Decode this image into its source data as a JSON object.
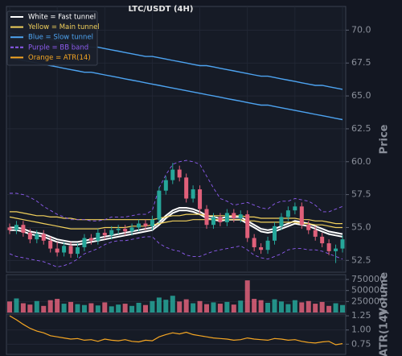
{
  "chart_data": [
    {
      "type": "candlestick",
      "title": "LTC/USDT (4H)",
      "y_label": "Price",
      "open": [
        55.0,
        54.8,
        55.2,
        54.6,
        54.1,
        54.5,
        54.0,
        53.4,
        53.1,
        53.6,
        53.0,
        53.5,
        54.2,
        54.0,
        54.6,
        54.4,
        54.8,
        54.9,
        54.7,
        55.0,
        55.3,
        55.1,
        55.6,
        57.8,
        58.6,
        59.4,
        58.8,
        57.2,
        57.9,
        56.4,
        55.2,
        55.8,
        55.4,
        56.1,
        55.7,
        56.0,
        54.2,
        53.5,
        53.3,
        54.0,
        55.1,
        55.8,
        56.3,
        56.6,
        55.2,
        54.8,
        54.3,
        53.8,
        53.2,
        53.4
      ],
      "high": [
        55.3,
        55.5,
        55.5,
        54.9,
        54.8,
        54.8,
        54.3,
        53.9,
        53.9,
        53.9,
        53.8,
        54.5,
        54.5,
        54.9,
        54.9,
        55.1,
        55.2,
        55.2,
        55.3,
        55.6,
        55.6,
        55.9,
        58.1,
        58.9,
        59.9,
        59.7,
        59.1,
        58.2,
        58.2,
        56.7,
        56.1,
        56.1,
        56.4,
        56.4,
        56.3,
        56.3,
        54.5,
        53.8,
        54.3,
        55.4,
        56.1,
        56.6,
        56.9,
        56.9,
        55.5,
        55.1,
        54.6,
        54.1,
        53.7,
        54.4
      ],
      "low": [
        54.5,
        54.5,
        54.3,
        53.8,
        53.8,
        53.7,
        53.1,
        52.8,
        52.8,
        52.7,
        52.7,
        53.2,
        53.7,
        53.7,
        54.1,
        54.1,
        54.5,
        54.4,
        54.4,
        54.7,
        54.8,
        54.8,
        55.3,
        57.5,
        58.3,
        58.5,
        56.9,
        56.9,
        56.1,
        54.9,
        54.9,
        55.1,
        55.1,
        55.4,
        55.4,
        53.9,
        53.2,
        53.0,
        53.0,
        53.7,
        54.8,
        55.5,
        56.0,
        54.9,
        54.5,
        54.0,
        53.5,
        52.9,
        52.3,
        53.1
      ],
      "close": [
        54.8,
        55.2,
        54.6,
        54.1,
        54.5,
        54.0,
        53.4,
        53.1,
        53.6,
        53.0,
        53.5,
        54.2,
        54.0,
        54.6,
        54.4,
        54.8,
        54.9,
        54.7,
        55.0,
        55.3,
        55.1,
        55.6,
        57.8,
        58.6,
        59.4,
        58.8,
        57.2,
        57.9,
        56.4,
        55.2,
        55.8,
        55.4,
        56.1,
        55.7,
        56.0,
        54.2,
        53.5,
        53.3,
        54.0,
        55.1,
        55.8,
        56.3,
        56.6,
        55.2,
        54.8,
        54.3,
        53.8,
        53.2,
        53.4,
        54.1
      ],
      "up_color": "#26a69a",
      "down_color": "#e0607a",
      "ylim": [
        51.6,
        71.8
      ],
      "yticks": [
        52.5,
        {
          "value": 55,
          "label": "55.0"
        },
        57.5,
        {
          "value": 60,
          "label": "60.0"
        },
        62.5,
        {
          "value": 65,
          "label": "65.0"
        },
        67.5,
        {
          "value": 70,
          "label": "70.0"
        }
      ],
      "grid": true,
      "legend": "upper left",
      "series": [
        {
          "name": "White = Fast tunnel",
          "color": "#ffffff",
          "width": 2,
          "upper": [
            55.0,
            55.0,
            54.9,
            54.7,
            54.6,
            54.5,
            54.3,
            54.1,
            54.0,
            53.9,
            53.9,
            54.0,
            54.1,
            54.2,
            54.3,
            54.4,
            54.5,
            54.6,
            54.7,
            54.8,
            54.9,
            55.0,
            55.4,
            55.9,
            56.3,
            56.5,
            56.5,
            56.4,
            56.2,
            55.9,
            55.8,
            55.7,
            55.8,
            55.8,
            55.8,
            55.5,
            55.2,
            54.9,
            54.8,
            54.9,
            55.1,
            55.3,
            55.5,
            55.4,
            55.3,
            55.1,
            54.9,
            54.7,
            54.6,
            54.5
          ],
          "lower": [
            54.8,
            54.8,
            54.7,
            54.5,
            54.4,
            54.3,
            54.1,
            53.9,
            53.8,
            53.7,
            53.7,
            53.8,
            53.9,
            54.0,
            54.1,
            54.2,
            54.3,
            54.4,
            54.5,
            54.6,
            54.7,
            54.8,
            55.2,
            55.7,
            56.1,
            56.3,
            56.3,
            56.2,
            56.0,
            55.7,
            55.6,
            55.5,
            55.6,
            55.6,
            55.6,
            55.3,
            55.0,
            54.7,
            54.6,
            54.7,
            54.9,
            55.1,
            55.3,
            55.2,
            55.1,
            54.9,
            54.7,
            54.5,
            54.4,
            54.3
          ]
        },
        {
          "name": "Yellow = Main tunnel",
          "color": "#f2d15c",
          "width": 1.2,
          "upper": [
            56.2,
            56.2,
            56.1,
            56.0,
            55.9,
            55.9,
            55.8,
            55.8,
            55.7,
            55.7,
            55.6,
            55.6,
            55.6,
            55.6,
            55.6,
            55.6,
            55.6,
            55.6,
            55.6,
            55.6,
            55.6,
            55.6,
            55.7,
            55.8,
            55.9,
            55.9,
            56.0,
            56.0,
            56.0,
            55.9,
            55.9,
            55.9,
            55.9,
            55.9,
            55.9,
            55.8,
            55.8,
            55.7,
            55.7,
            55.7,
            55.7,
            55.7,
            55.7,
            55.6,
            55.6,
            55.5,
            55.5,
            55.4,
            55.3,
            55.3
          ],
          "lower": [
            55.8,
            55.7,
            55.6,
            55.5,
            55.4,
            55.3,
            55.2,
            55.1,
            55.0,
            54.9,
            54.9,
            54.9,
            54.9,
            54.9,
            55.0,
            55.0,
            55.0,
            55.0,
            55.1,
            55.1,
            55.1,
            55.2,
            55.3,
            55.4,
            55.5,
            55.5,
            55.5,
            55.6,
            55.6,
            55.6,
            55.6,
            55.6,
            55.6,
            55.6,
            55.6,
            55.5,
            55.5,
            55.4,
            55.4,
            55.4,
            55.4,
            55.4,
            55.4,
            55.3,
            55.3,
            55.2,
            55.2,
            55.1,
            55.0,
            55.0
          ]
        },
        {
          "name": "Blue = Slow tunnel",
          "color": "#4da3f0",
          "width": 1.4,
          "upper": [
            69.8,
            69.7,
            69.6,
            69.5,
            69.4,
            69.4,
            69.3,
            69.2,
            69.1,
            69.0,
            68.9,
            68.8,
            68.7,
            68.7,
            68.6,
            68.5,
            68.4,
            68.3,
            68.2,
            68.1,
            68.0,
            68.0,
            67.9,
            67.8,
            67.7,
            67.6,
            67.5,
            67.4,
            67.3,
            67.3,
            67.2,
            67.1,
            67.0,
            66.9,
            66.8,
            66.7,
            66.6,
            66.5,
            66.5,
            66.4,
            66.3,
            66.2,
            66.1,
            66.0,
            65.9,
            65.8,
            65.8,
            65.7,
            65.6,
            65.5
          ],
          "lower": [
            67.9,
            67.8,
            67.7,
            67.6,
            67.5,
            67.4,
            67.3,
            67.2,
            67.1,
            67.0,
            66.9,
            66.8,
            66.8,
            66.7,
            66.6,
            66.5,
            66.4,
            66.3,
            66.2,
            66.1,
            66.0,
            65.9,
            65.8,
            65.7,
            65.6,
            65.5,
            65.4,
            65.3,
            65.2,
            65.1,
            65.0,
            64.9,
            64.8,
            64.7,
            64.6,
            64.5,
            64.4,
            64.3,
            64.3,
            64.2,
            64.1,
            64.0,
            63.9,
            63.8,
            63.7,
            63.6,
            63.5,
            63.4,
            63.3,
            63.2
          ]
        },
        {
          "name": "Purple = BB band",
          "color": "#8e5cf0",
          "width": 0.9,
          "dashed": true,
          "upper": [
            57.6,
            57.6,
            57.5,
            57.3,
            57.0,
            56.6,
            56.3,
            56.0,
            55.8,
            55.6,
            55.6,
            55.6,
            55.5,
            55.5,
            55.6,
            55.8,
            55.8,
            55.8,
            55.9,
            56.0,
            56.0,
            56.3,
            58.0,
            59.0,
            59.8,
            60.0,
            60.1,
            60.0,
            59.8,
            58.9,
            58.0,
            57.2,
            57.0,
            56.7,
            56.8,
            56.9,
            56.7,
            56.5,
            56.4,
            56.8,
            57.0,
            57.0,
            57.2,
            57.1,
            57.0,
            56.7,
            56.2,
            56.2,
            56.4,
            56.6
          ],
          "lower": [
            53.0,
            52.8,
            52.7,
            52.6,
            52.5,
            52.4,
            52.2,
            52.0,
            52.1,
            52.3,
            52.6,
            53.0,
            53.2,
            53.4,
            53.7,
            53.9,
            54.0,
            54.0,
            54.1,
            54.2,
            54.3,
            54.3,
            53.8,
            53.5,
            53.3,
            53.2,
            52.9,
            52.8,
            52.8,
            53.0,
            53.2,
            53.3,
            53.4,
            53.5,
            53.6,
            53.3,
            52.9,
            52.7,
            52.6,
            52.8,
            53.0,
            53.3,
            53.4,
            53.4,
            53.3,
            53.3,
            53.2,
            53.0,
            52.8,
            52.6
          ]
        }
      ]
    },
    {
      "type": "bar",
      "y_label": "Volume",
      "values": [
        250000,
        320000,
        210000,
        180000,
        260000,
        150000,
        280000,
        310000,
        200000,
        240000,
        190000,
        170000,
        210000,
        160000,
        230000,
        140000,
        180000,
        200000,
        150000,
        220000,
        170000,
        260000,
        340000,
        290000,
        380000,
        250000,
        300000,
        210000,
        260000,
        190000,
        230000,
        200000,
        240000,
        180000,
        270000,
        730000,
        310000,
        280000,
        220000,
        300000,
        250000,
        190000,
        280000,
        230000,
        260000,
        200000,
        240000,
        150000,
        210000,
        170000
      ],
      "ylim": [
        0,
        860000
      ],
      "yticks": [
        250000,
        500000,
        750000
      ]
    },
    {
      "type": "line",
      "y_label": "ATR(14)",
      "series": [
        {
          "name": "Orange = ATR(14)",
          "color": "#f5a623",
          "values": [
            1.25,
            1.18,
            1.1,
            1.03,
            0.98,
            0.95,
            0.9,
            0.88,
            0.86,
            0.84,
            0.85,
            0.82,
            0.83,
            0.8,
            0.84,
            0.82,
            0.81,
            0.83,
            0.8,
            0.79,
            0.82,
            0.81,
            0.88,
            0.92,
            0.95,
            0.93,
            0.96,
            0.92,
            0.9,
            0.88,
            0.86,
            0.85,
            0.84,
            0.82,
            0.83,
            0.86,
            0.84,
            0.83,
            0.82,
            0.85,
            0.84,
            0.82,
            0.83,
            0.8,
            0.78,
            0.77,
            0.79,
            0.8,
            0.74,
            0.76
          ]
        }
      ],
      "ylim": [
        0.57,
        1.28
      ],
      "yticks": [
        0.75,
        {
          "value": 1,
          "label": "1.00"
        },
        1.25
      ]
    }
  ]
}
